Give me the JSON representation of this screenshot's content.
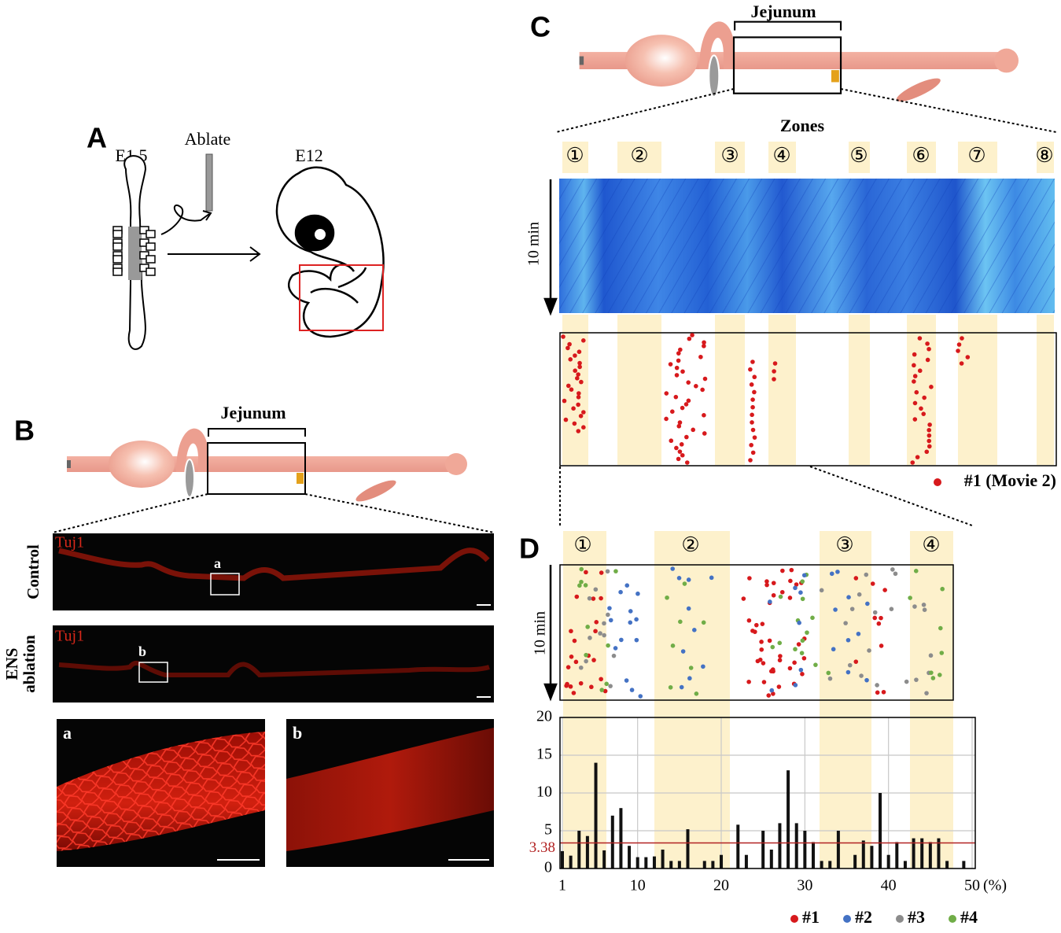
{
  "panel_labels": [
    "A",
    "B",
    "C",
    "D"
  ],
  "panel_a": {
    "stage_start": "E1.5",
    "procedure": "Ablate",
    "stage_end": "E12"
  },
  "panel_b": {
    "segment": "Jejunum",
    "row_labels": [
      "Control",
      "ENS ablation"
    ],
    "stain": [
      "Tuj1",
      "Tuj1"
    ],
    "inset_labels": [
      "a",
      "b"
    ]
  },
  "panel_c": {
    "segment": "Jejunum",
    "zones_title": "Zones",
    "zones": [
      "①",
      "②",
      "③",
      "④",
      "⑤",
      "⑥",
      "⑦",
      "⑧"
    ],
    "time_label": "10 min",
    "legend": "#1 (Movie 2)",
    "legend_color": "#d7191c"
  },
  "panel_d": {
    "zones": [
      "①",
      "②",
      "③",
      "④"
    ],
    "time_label": "10 min",
    "series": [
      {
        "name": "#1",
        "color": "#d7191c"
      },
      {
        "name": "#2",
        "color": "#4472c4"
      },
      {
        "name": "#3",
        "color": "#8c8c8c"
      },
      {
        "name": "#4",
        "color": "#70ad47"
      }
    ]
  },
  "chart_data": {
    "type": "bar",
    "x": [
      1,
      2,
      3,
      4,
      5,
      6,
      7,
      8,
      9,
      10,
      11,
      12,
      13,
      14,
      15,
      16,
      17,
      18,
      19,
      20,
      21,
      22,
      23,
      24,
      25,
      26,
      27,
      28,
      29,
      30,
      31,
      32,
      33,
      34,
      35,
      36,
      37,
      38,
      39,
      40,
      41,
      42,
      43,
      44,
      45,
      46,
      47,
      48,
      49
    ],
    "values": [
      2.3,
      1.7,
      5,
      4.3,
      14,
      2.4,
      7,
      8,
      3,
      1.5,
      1.5,
      1.6,
      2.5,
      1,
      1,
      5.2,
      0,
      1,
      1,
      1.8,
      0,
      5.8,
      1.8,
      0,
      5,
      2.5,
      6,
      13,
      6,
      5,
      3.5,
      1,
      1,
      5,
      0,
      1.8,
      3.7,
      3,
      10,
      1.8,
      3.5,
      1,
      4,
      4,
      3.5,
      4,
      1,
      0,
      1
    ],
    "color": "#111111",
    "xlim": [
      1,
      50
    ],
    "xticks": [
      1,
      10,
      20,
      30,
      40,
      50
    ],
    "x_unit": "(%)",
    "ylim": [
      0,
      20
    ],
    "yticks": [
      0,
      5,
      10,
      15,
      20
    ],
    "threshold": 3.38,
    "threshold_color": "#b22222",
    "grid": true
  }
}
